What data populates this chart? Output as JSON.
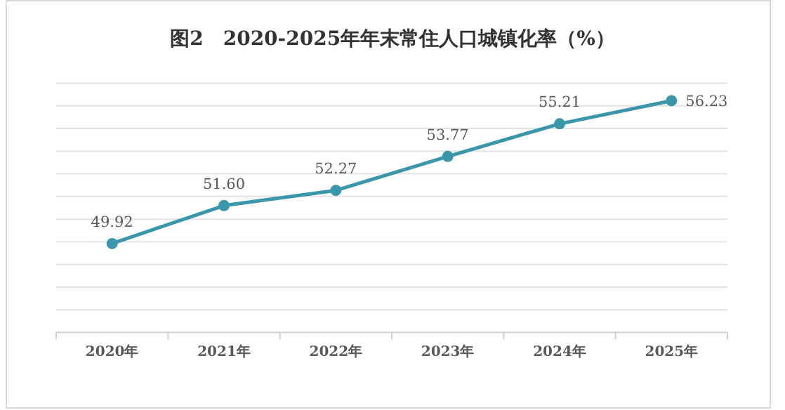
{
  "chart_data": {
    "type": "line",
    "title": "图2　2020-2025年年末常住人口城镇化率（%）",
    "categories": [
      "2020年",
      "2021年",
      "2022年",
      "2023年",
      "2024年",
      "2025年"
    ],
    "series": [
      {
        "color": "#3a97ab",
        "values": [
          49.92,
          51.6,
          52.27,
          53.77,
          55.21,
          56.23
        ],
        "value_labels": [
          "49.92",
          "51.60",
          "52.27",
          "53.77",
          "55.21",
          "56.23"
        ]
      }
    ],
    "marker": "circle",
    "grid": "y",
    "tick_labels": "x",
    "ylim": [
      46,
      57
    ],
    "yticks": [
      {
        "value": 46,
        "label": null
      },
      {
        "value": 47,
        "label": null
      },
      {
        "value": 48,
        "label": null
      },
      {
        "value": 49,
        "label": null
      },
      {
        "value": 50,
        "label": null
      },
      {
        "value": 51,
        "label": null
      },
      {
        "value": 52,
        "label": null
      },
      {
        "value": 53,
        "label": null
      },
      {
        "value": 54,
        "label": null
      },
      {
        "value": 55,
        "label": null
      },
      {
        "value": 56,
        "label": null
      },
      {
        "value": 57,
        "label": null
      }
    ]
  }
}
